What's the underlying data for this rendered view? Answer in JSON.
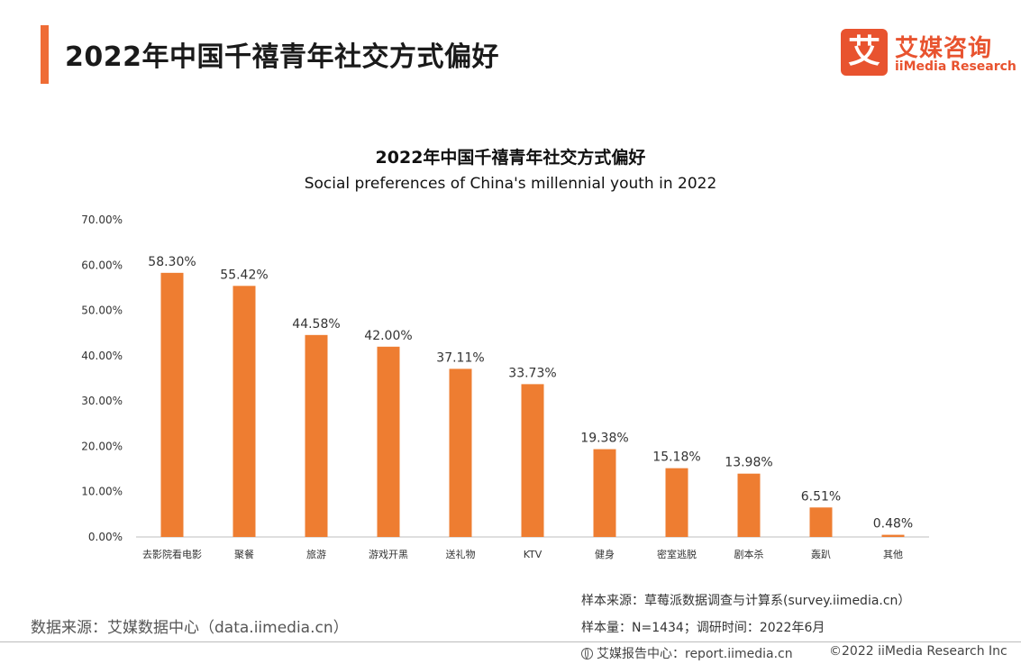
{
  "header": {
    "title": "2022年中国千禧青年社交方式偏好",
    "logo": {
      "mark": "艾",
      "name_cn": "艾媒咨询",
      "name_en": "iiMedia Research",
      "color": "#e8532f"
    }
  },
  "colors": {
    "accent": "#ef6c35",
    "bar": "#ee7d31"
  },
  "chart_data": {
    "type": "bar",
    "title": "2022年中国千禧青年社交方式偏好",
    "subtitle": "Social preferences of China's millennial youth in 2022",
    "categories": [
      "去影院看电影",
      "聚餐",
      "旅游",
      "游戏开黑",
      "送礼物",
      "KTV",
      "健身",
      "密室逃脱",
      "剧本杀",
      "轰趴",
      "其他"
    ],
    "values": [
      58.3,
      55.42,
      44.58,
      42.0,
      37.11,
      33.73,
      19.38,
      15.18,
      13.98,
      6.51,
      0.48
    ],
    "value_labels": [
      "58.30%",
      "55.42%",
      "44.58%",
      "42.00%",
      "37.11%",
      "33.73%",
      "19.38%",
      "15.18%",
      "13.98%",
      "6.51%",
      "0.48%"
    ],
    "yticks": [
      "0.00%",
      "10.00%",
      "20.00%",
      "30.00%",
      "40.00%",
      "50.00%",
      "60.00%",
      "70.00%"
    ],
    "ylim": [
      0,
      70
    ],
    "grid": false,
    "legend": "none"
  },
  "footer": {
    "data_source": "数据来源：艾媒数据中心（data.iimedia.cn）",
    "sample_source": "样本来源：草莓派数据调查与计算系(survey.iimedia.cn）",
    "sample_size": "样本量：N=1434；调研时间：2022年6月",
    "report_center": "艾媒报告中心：report.iimedia.cn",
    "copyright": "©2022  iiMedia Research  Inc"
  }
}
